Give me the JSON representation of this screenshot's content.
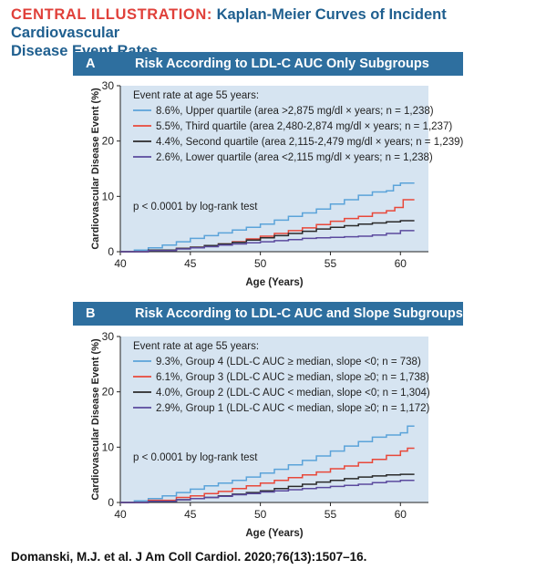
{
  "header": {
    "label": "CENTRAL ILLUSTRATION:",
    "title_line1": "Kaplan-Meier Curves of Incident Cardiovascular",
    "title_line2": "Disease Event Rates"
  },
  "colors": {
    "panel_bar": "#2e6f9f",
    "plot_bg": "#d6e4f1",
    "header_label": "#e0403a",
    "header_title": "#1f5f8f",
    "blue": "#5ba3d9",
    "red": "#e8483a",
    "black": "#2a2a2a",
    "purple": "#5b4a9e"
  },
  "chart_data": [
    {
      "type": "line",
      "panel_letter": "A",
      "title": "Risk According to LDL-C AUC Only Subgroups",
      "xlabel": "Age (Years)",
      "ylabel": "Cardiovascular Disease Event (%)",
      "xlim": [
        40,
        62
      ],
      "ylim": [
        0,
        30
      ],
      "xticks": [
        40,
        45,
        50,
        55,
        60
      ],
      "yticks": [
        0,
        10,
        20,
        30
      ],
      "legend_title": "Event rate at age 55 years:",
      "annotation": "p < 0.0001 by log-rank test",
      "series": [
        {
          "name": "8.6%, Upper quartile (area >2,875 mg/dl × years; n = 1,238)",
          "color": "#5ba3d9",
          "x": [
            40,
            41,
            42,
            43,
            44,
            45,
            46,
            47,
            48,
            49,
            50,
            51,
            52,
            53,
            54,
            55,
            56,
            57,
            58,
            59,
            59.5,
            60,
            61
          ],
          "y": [
            0,
            0.3,
            0.7,
            1.2,
            1.8,
            2.4,
            2.9,
            3.4,
            3.9,
            4.4,
            5.0,
            5.7,
            6.4,
            7.0,
            7.7,
            8.6,
            9.4,
            10.2,
            10.8,
            11.0,
            12.0,
            12.4,
            12.4
          ]
        },
        {
          "name": "5.5%, Third quartile (area 2,480-2,874 mg/dl × years; n = 1,237)",
          "color": "#e8483a",
          "x": [
            40,
            42,
            44,
            45,
            46,
            47,
            48,
            49,
            50,
            51,
            52,
            53,
            54,
            55,
            56,
            57,
            58,
            59,
            59.6,
            60.2,
            61
          ],
          "y": [
            0,
            0.3,
            0.6,
            0.8,
            1.1,
            1.4,
            1.8,
            2.3,
            2.8,
            3.3,
            3.8,
            4.3,
            4.9,
            5.5,
            6.0,
            6.4,
            7.0,
            7.4,
            8.0,
            9.4,
            9.4
          ]
        },
        {
          "name": "4.4%, Second quartile (area 2,115-2,479 mg/dl × years; n = 1,239)",
          "color": "#2a2a2a",
          "x": [
            40,
            42,
            44,
            45,
            46,
            47,
            48,
            49,
            50,
            51,
            52,
            53,
            54,
            55,
            56,
            57,
            58,
            59,
            60,
            61
          ],
          "y": [
            0,
            0.3,
            0.6,
            0.8,
            1.1,
            1.4,
            1.7,
            2.1,
            2.5,
            2.9,
            3.3,
            3.7,
            4.1,
            4.4,
            4.7,
            5.0,
            5.2,
            5.4,
            5.6,
            5.6
          ]
        },
        {
          "name": "2.6%, Lower quartile (area <2,115 mg/dl × years; n = 1,238)",
          "color": "#5b4a9e",
          "x": [
            40,
            42,
            44,
            45,
            46,
            47,
            48,
            49,
            50,
            51,
            52,
            53,
            54,
            55,
            56,
            57,
            58,
            59,
            60,
            61
          ],
          "y": [
            0,
            0.2,
            0.5,
            0.7,
            0.9,
            1.2,
            1.4,
            1.6,
            1.8,
            2.0,
            2.2,
            2.4,
            2.5,
            2.6,
            2.7,
            2.8,
            3.0,
            3.3,
            3.8,
            3.8
          ]
        }
      ]
    },
    {
      "type": "line",
      "panel_letter": "B",
      "title": "Risk According to LDL-C AUC and Slope Subgroups",
      "xlabel": "Age (Years)",
      "ylabel": "Cardiovascular Disease Event (%)",
      "xlim": [
        40,
        62
      ],
      "ylim": [
        0,
        30
      ],
      "xticks": [
        40,
        45,
        50,
        55,
        60
      ],
      "yticks": [
        0,
        10,
        20,
        30
      ],
      "legend_title": "Event rate at age 55 years:",
      "annotation": "p < 0.0001 by log-rank test",
      "series": [
        {
          "name": "9.3%, Group 4 (LDL-C AUC ≥ median, slope <0; n = 738)",
          "color": "#5ba3d9",
          "x": [
            40,
            41,
            42,
            43,
            44,
            45,
            46,
            47,
            48,
            49,
            50,
            51,
            52,
            53,
            54,
            55,
            56,
            57,
            58,
            59,
            60,
            60.5,
            61
          ],
          "y": [
            0,
            0.3,
            0.7,
            1.2,
            1.8,
            2.4,
            3.0,
            3.5,
            4.0,
            4.6,
            5.3,
            6.0,
            6.8,
            7.6,
            8.4,
            9.3,
            10.2,
            11.0,
            11.8,
            12.2,
            12.6,
            13.8,
            13.8
          ]
        },
        {
          "name": "6.1%, Group 3 (LDL-C AUC ≥ median, slope ≥0; n = 1,738)",
          "color": "#e8483a",
          "x": [
            40,
            42,
            44,
            45,
            46,
            47,
            48,
            49,
            50,
            51,
            52,
            53,
            54,
            55,
            56,
            57,
            58,
            59,
            60,
            60.5,
            61
          ],
          "y": [
            0,
            0.4,
            0.9,
            1.2,
            1.6,
            2.0,
            2.5,
            3.0,
            3.5,
            4.0,
            4.5,
            5.0,
            5.5,
            6.1,
            6.6,
            7.2,
            7.8,
            8.5,
            9.3,
            9.8,
            9.8
          ]
        },
        {
          "name": "4.0%, Group 2 (LDL-C AUC < median, slope <0; n = 1,304)",
          "color": "#2a2a2a",
          "x": [
            40,
            42,
            44,
            45,
            46,
            47,
            48,
            49,
            50,
            51,
            52,
            53,
            54,
            55,
            56,
            57,
            58,
            59,
            60,
            61
          ],
          "y": [
            0,
            0.2,
            0.5,
            0.7,
            0.9,
            1.2,
            1.5,
            1.8,
            2.1,
            2.5,
            2.9,
            3.3,
            3.7,
            4.0,
            4.3,
            4.6,
            4.8,
            5.0,
            5.1,
            5.1
          ]
        },
        {
          "name": "2.9%, Group 1 (LDL-C AUC < median, slope ≥0; n = 1,172)",
          "color": "#5b4a9e",
          "x": [
            40,
            42,
            44,
            45,
            46,
            47,
            48,
            49,
            50,
            51,
            52,
            53,
            54,
            55,
            56,
            57,
            58,
            59,
            60,
            61
          ],
          "y": [
            0,
            0.2,
            0.5,
            0.7,
            0.9,
            1.1,
            1.4,
            1.6,
            1.9,
            2.1,
            2.3,
            2.5,
            2.7,
            2.9,
            3.1,
            3.3,
            3.6,
            3.8,
            4.0,
            4.0
          ]
        }
      ]
    }
  ],
  "footer": "Domanski, M.J. et al. J Am Coll Cardiol. 2020;76(13):1507–16."
}
